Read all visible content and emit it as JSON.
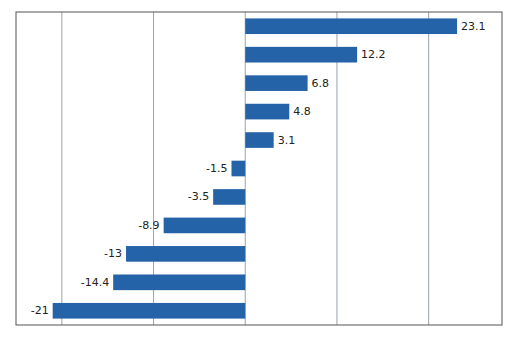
{
  "chart_data": {
    "type": "bar",
    "orientation": "horizontal",
    "categories": [
      null,
      null,
      null,
      null,
      null,
      null,
      null,
      null,
      null,
      null,
      null
    ],
    "values": [
      23.1,
      12.2,
      6.8,
      4.8,
      3.1,
      -1.5,
      -3.5,
      -8.9,
      -13.0,
      -14.4,
      -21.0
    ],
    "color": "#2563a8",
    "xlim": [
      -25,
      28
    ],
    "xticks": [
      -20,
      -10,
      0,
      10,
      20
    ],
    "grid": true,
    "data_labels": true,
    "tick_labels": false
  }
}
